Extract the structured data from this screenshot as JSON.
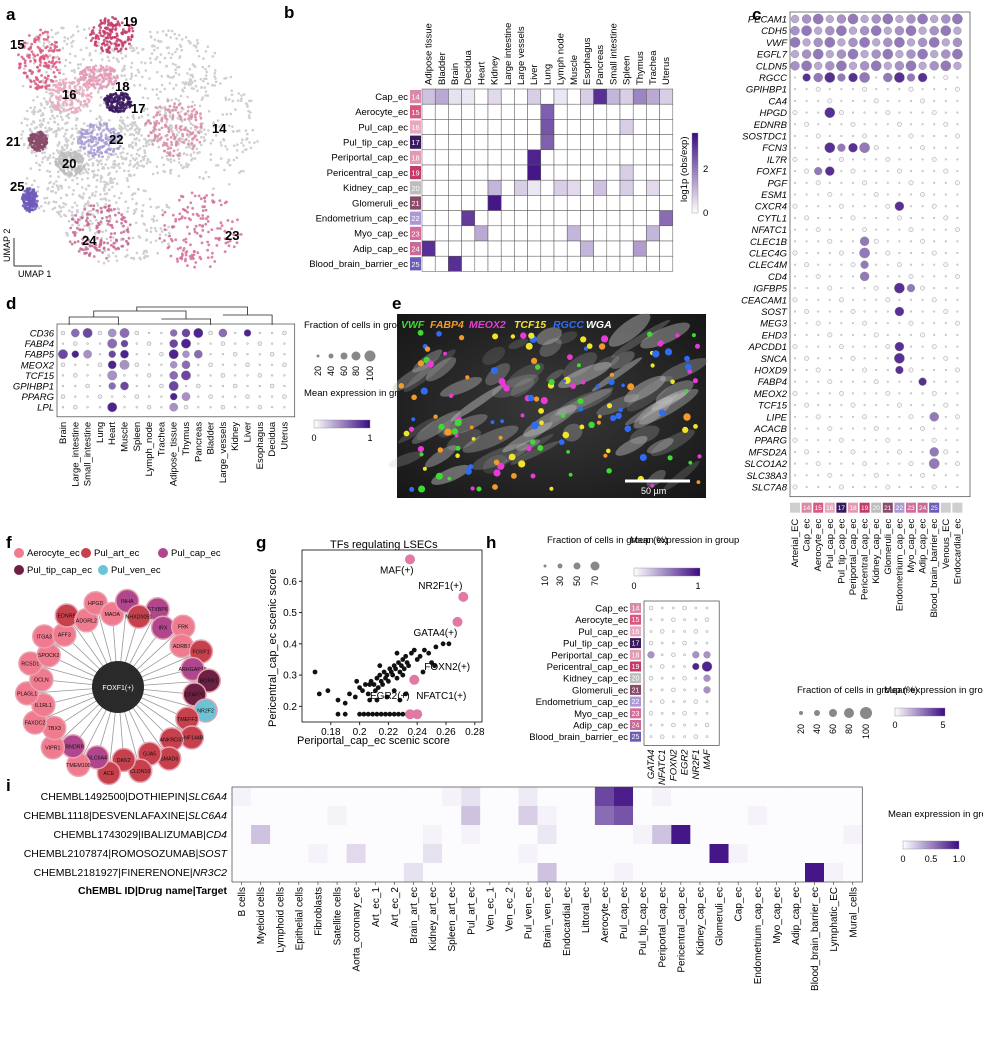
{
  "panel_labels": {
    "a": "a",
    "b": "b",
    "c": "c",
    "d": "d",
    "e": "e",
    "f": "f",
    "g": "g",
    "h": "h",
    "i": "i"
  },
  "colors": {
    "accent": "#4b1d8f",
    "pink": "#e07aa5",
    "grid": "#555555",
    "umap_grey": "#c8c8c8"
  },
  "panel_a": {
    "axis_x": "UMAP 1",
    "axis_y": "UMAP 2",
    "clusters": [
      {
        "label": "19",
        "color": "#c43a6a"
      },
      {
        "label": "15",
        "color": "#d9587f"
      },
      {
        "label": "18",
        "color": "#e39ab5"
      },
      {
        "label": "16",
        "color": "#e7a9c0"
      },
      {
        "label": "17",
        "color": "#3a1a5e"
      },
      {
        "label": "21",
        "color": "#8a4a6a"
      },
      {
        "label": "22",
        "color": "#a99ad6"
      },
      {
        "label": "14",
        "color": "#d98aa8"
      },
      {
        "label": "20",
        "color": "#bdbdbd"
      },
      {
        "label": "25",
        "color": "#6e5ab8"
      },
      {
        "label": "24",
        "color": "#c86a95"
      },
      {
        "label": "23",
        "color": "#d46d9c"
      }
    ]
  },
  "panel_b": {
    "colorbar_title": "log1p (obs/exp)",
    "colorbar_ticks": [
      "2",
      "0"
    ],
    "columns": [
      "Adipose tissue",
      "Bladder",
      "Brain",
      "Decidua",
      "Heart",
      "Kidney",
      "Large intestine",
      "Large vessels",
      "Liver",
      "Lung",
      "Lymph node",
      "Muscle",
      "Esophagus",
      "Pancreas",
      "Small intestine",
      "Spleen",
      "Thymus",
      "Trachea",
      "Uterus"
    ],
    "rows": [
      {
        "name": "Cap_ec",
        "id": "14",
        "color": "#d98aa8"
      },
      {
        "name": "Aerocyte_ec",
        "id": "15",
        "color": "#d9587f"
      },
      {
        "name": "Pul_cap_ec",
        "id": "16",
        "color": "#e7a9c0"
      },
      {
        "name": "Pul_tip_cap_ec",
        "id": "17",
        "color": "#3a1a5e"
      },
      {
        "name": "Periportal_cap_ec",
        "id": "18",
        "color": "#e39ab5"
      },
      {
        "name": "Pericentral_cap_ec",
        "id": "19",
        "color": "#c43a6a"
      },
      {
        "name": "Kidney_cap_ec",
        "id": "20",
        "color": "#bdbdbd"
      },
      {
        "name": "Glomeruli_ec",
        "id": "21",
        "color": "#8a4a6a"
      },
      {
        "name": "Endometrium_cap_ec",
        "id": "22",
        "color": "#a99ad6"
      },
      {
        "name": "Myo_cap_ec",
        "id": "23",
        "color": "#d46d9c"
      },
      {
        "name": "Adip_cap_ec",
        "id": "24",
        "color": "#c86a95"
      },
      {
        "name": "Blood_brain_barrier_ec",
        "id": "25",
        "color": "#6e5ab8"
      }
    ]
  },
  "panel_c": {
    "genes": [
      "PECAM1",
      "CDH5",
      "VWF",
      "EGFL7",
      "CLDN5",
      "RGCC",
      "GPIHBP1",
      "CA4",
      "HPGD",
      "EDNRB",
      "SOSTDC1",
      "FCN3",
      "IL7R",
      "FOXF1",
      "PGF",
      "ESM1",
      "CXCR4",
      "CYTL1",
      "NFATC1",
      "CLEC1B",
      "CLEC4G",
      "CLEC4M",
      "CD4",
      "IGFBP5",
      "CEACAM1",
      "SOST",
      "MEG3",
      "EHD3",
      "APCDD1",
      "SNCA",
      "HOXD9",
      "FABP4",
      "MEOX2",
      "TCF15",
      "LIPE",
      "ACACB",
      "PPARG",
      "MFSD2A",
      "SLCO1A2",
      "SLC38A3",
      "SLC7A8"
    ],
    "groups": [
      {
        "name": "Arterial_EC",
        "id": "",
        "color": "#cfcfcf"
      },
      {
        "name": "Cap_ec",
        "id": "14",
        "color": "#d98aa8"
      },
      {
        "name": "Aerocyte_ec",
        "id": "15",
        "color": "#d9587f"
      },
      {
        "name": "Pul_cap_ec",
        "id": "16",
        "color": "#e7a9c0"
      },
      {
        "name": "Pul_tip_cap_ec",
        "id": "17",
        "color": "#3a1a5e"
      },
      {
        "name": "Periportal_cap_ec",
        "id": "18",
        "color": "#e39ab5"
      },
      {
        "name": "Pericentral_cap_ec",
        "id": "19",
        "color": "#c43a6a"
      },
      {
        "name": "Kidney_cap_ec",
        "id": "20",
        "color": "#bdbdbd"
      },
      {
        "name": "Glomeruli_ec",
        "id": "21",
        "color": "#8a4a6a"
      },
      {
        "name": "Endometrium_cap_ec",
        "id": "22",
        "color": "#a99ad6"
      },
      {
        "name": "Myo_cap_ec",
        "id": "23",
        "color": "#d46d9c"
      },
      {
        "name": "Adip_cap_ec",
        "id": "24",
        "color": "#c86a95"
      },
      {
        "name": "Blood_brain_barrier_ec",
        "id": "25",
        "color": "#6e5ab8"
      },
      {
        "name": "Venous_EC",
        "id": "",
        "color": "#cfcfcf"
      },
      {
        "name": "Endocardial_ec",
        "id": "",
        "color": "#cfcfcf"
      }
    ],
    "legend_size_title": "Fraction of cells in group (%)",
    "legend_size_ticks": [
      "20",
      "40",
      "60",
      "80",
      "100"
    ],
    "legend_color_title": "Mean expression in group",
    "legend_color_ticks": [
      "0",
      "5"
    ]
  },
  "panel_d": {
    "genes": [
      "CD36",
      "FABP4",
      "FABP5",
      "MEOX2",
      "TCF15",
      "GPIHBP1",
      "PPARG",
      "LPL"
    ],
    "tissues": [
      "Brain",
      "Large_intestine",
      "Small_intestine",
      "Lung",
      "Heart",
      "Muscle",
      "Spleen",
      "Lymph_node",
      "Trachea",
      "Adipose_tissue",
      "Thymus",
      "Pancreas",
      "Bladder",
      "Large_vessels",
      "Kidney",
      "Liver",
      "Esophagus",
      "Decidua",
      "Uterus"
    ],
    "legend_size_title": "Fraction of cells in group (%)",
    "legend_size_ticks": [
      "20",
      "40",
      "60",
      "80",
      "100"
    ],
    "legend_color_title": "Mean expression in group",
    "legend_color_ticks": [
      "0",
      "1"
    ]
  },
  "panel_e": {
    "labels": [
      {
        "text": "VWF",
        "color": "#3ddc2f"
      },
      {
        "text": "FABP4",
        "color": "#f39a2a"
      },
      {
        "text": "MEOX2",
        "color": "#e83bd6"
      },
      {
        "text": "TCF15",
        "color": "#f1e52b"
      },
      {
        "text": "RGCC",
        "color": "#2f6cf5"
      },
      {
        "text": "WGA",
        "color": "#ffffff"
      }
    ],
    "scale_bar": "50 µm"
  },
  "panel_f": {
    "legend": [
      {
        "label": "Aerocyte_ec",
        "color": "#f07a8e"
      },
      {
        "label": "Pul_art_ec",
        "color": "#c7414d"
      },
      {
        "label": "Pul_cap_ec",
        "color": "#b0468e"
      },
      {
        "label": "Pul_tip_cap_ec",
        "color": "#6e2044"
      },
      {
        "label": "Pul_ven_ec",
        "color": "#6cc3d5"
      }
    ],
    "center": "FOXF1(+)",
    "nodes": [
      {
        "label": "STXBP6",
        "color": "#b0468e"
      },
      {
        "label": "IRX",
        "color": "#b0468e"
      },
      {
        "label": "FRK",
        "color": "#f07a8e"
      },
      {
        "label": "ADRB1",
        "color": "#f07a8e"
      },
      {
        "label": "FOXF1",
        "color": "#c7414d"
      },
      {
        "label": "ARHGAP18",
        "color": "#b0468e"
      },
      {
        "label": "BORB1",
        "color": "#6e2044"
      },
      {
        "label": "CFAP70",
        "color": "#6e2044"
      },
      {
        "label": "NR2F2",
        "color": "#6cc3d5"
      },
      {
        "label": "TMEFF2",
        "color": "#c7414d"
      },
      {
        "label": "RNF144B",
        "color": "#c7414d"
      },
      {
        "label": "ANKRD37",
        "color": "#c7414d"
      },
      {
        "label": "SMAD6",
        "color": "#c7414d"
      },
      {
        "label": "GJA5",
        "color": "#c7414d"
      },
      {
        "label": "CLDN10",
        "color": "#c7414d"
      },
      {
        "label": "DKK2",
        "color": "#c7414d"
      },
      {
        "label": "ACE",
        "color": "#c7414d"
      },
      {
        "label": "SLC6A4",
        "color": "#b0468e"
      },
      {
        "label": "TMEM100",
        "color": "#f07a8e"
      },
      {
        "label": "PRNDRR",
        "color": "#b0468e"
      },
      {
        "label": "VIPR1",
        "color": "#f07a8e"
      },
      {
        "label": "TBX3",
        "color": "#f07a8e"
      },
      {
        "label": "FAXDC2",
        "color": "#f07a8e"
      },
      {
        "label": "IL1RL1",
        "color": "#f07a8e"
      },
      {
        "label": "PLAGL1",
        "color": "#f07a8e"
      },
      {
        "label": "OCLN",
        "color": "#f07a8e"
      },
      {
        "label": "RCSD1",
        "color": "#f07a8e"
      },
      {
        "label": "SPOCK2",
        "color": "#f07a8e"
      },
      {
        "label": "ITGA3",
        "color": "#f07a8e"
      },
      {
        "label": "AFF3",
        "color": "#f07a8e"
      },
      {
        "label": "EDNRB",
        "color": "#c7414d"
      },
      {
        "label": "ADGRL2",
        "color": "#f07a8e"
      },
      {
        "label": "HPGD",
        "color": "#f07a8e"
      },
      {
        "label": "MAOA",
        "color": "#f07a8e"
      },
      {
        "label": "INHA",
        "color": "#b0468e"
      },
      {
        "label": "NHXD0051",
        "color": "#c7414d"
      }
    ]
  },
  "panel_g": {
    "title": "TFs regulating LSECs",
    "xlabel": "Periportal_cap_ec scenic score",
    "ylabel": "Pericentral_cap_ec scenic score"
  },
  "chart_data": [
    {
      "type": "scatter",
      "title": "TFs regulating LSECs",
      "xlabel": "Periportal_cap_ec scenic score",
      "ylabel": "Pericentral_cap_ec scenic score",
      "xlim": [
        0.16,
        0.285
      ],
      "ylim": [
        0.15,
        0.7
      ],
      "xticks": [
        0.18,
        0.2,
        0.22,
        0.24,
        0.26,
        0.28
      ],
      "yticks": [
        0.2,
        0.3,
        0.4,
        0.5,
        0.6
      ],
      "highlighted": [
        {
          "label": "MAF(+)",
          "x": 0.235,
          "y": 0.67
        },
        {
          "label": "NR2F1(+)",
          "x": 0.272,
          "y": 0.55
        },
        {
          "label": "GATA4(+)",
          "x": 0.268,
          "y": 0.47
        },
        {
          "label": "FOXN2(+)",
          "x": 0.238,
          "y": 0.285
        },
        {
          "label": "EGR2(+)",
          "x": 0.235,
          "y": 0.175
        },
        {
          "label": "NFATC1(+)",
          "x": 0.24,
          "y": 0.175
        }
      ],
      "points": [
        [
          0.169,
          0.31
        ],
        [
          0.172,
          0.24
        ],
        [
          0.178,
          0.25
        ],
        [
          0.185,
          0.22
        ],
        [
          0.19,
          0.21
        ],
        [
          0.193,
          0.24
        ],
        [
          0.197,
          0.23
        ],
        [
          0.2,
          0.26
        ],
        [
          0.202,
          0.25
        ],
        [
          0.204,
          0.27
        ],
        [
          0.206,
          0.24
        ],
        [
          0.207,
          0.22
        ],
        [
          0.208,
          0.28
        ],
        [
          0.21,
          0.27
        ],
        [
          0.211,
          0.25
        ],
        [
          0.212,
          0.29
        ],
        [
          0.213,
          0.26
        ],
        [
          0.214,
          0.3
        ],
        [
          0.215,
          0.28
        ],
        [
          0.216,
          0.27
        ],
        [
          0.217,
          0.31
        ],
        [
          0.218,
          0.29
        ],
        [
          0.219,
          0.3
        ],
        [
          0.22,
          0.28
        ],
        [
          0.221,
          0.32
        ],
        [
          0.222,
          0.31
        ],
        [
          0.223,
          0.3
        ],
        [
          0.224,
          0.33
        ],
        [
          0.225,
          0.32
        ],
        [
          0.226,
          0.29
        ],
        [
          0.227,
          0.34
        ],
        [
          0.228,
          0.31
        ],
        [
          0.229,
          0.33
        ],
        [
          0.23,
          0.35
        ],
        [
          0.231,
          0.32
        ],
        [
          0.232,
          0.36
        ],
        [
          0.233,
          0.34
        ],
        [
          0.234,
          0.33
        ],
        [
          0.236,
          0.37
        ],
        [
          0.238,
          0.38
        ],
        [
          0.24,
          0.35
        ],
        [
          0.242,
          0.36
        ],
        [
          0.245,
          0.38
        ],
        [
          0.248,
          0.37
        ],
        [
          0.25,
          0.34
        ],
        [
          0.253,
          0.39
        ],
        [
          0.258,
          0.4
        ],
        [
          0.262,
          0.4
        ],
        [
          0.228,
          0.22
        ],
        [
          0.232,
          0.24
        ],
        [
          0.219,
          0.23
        ],
        [
          0.224,
          0.25
        ],
        [
          0.212,
          0.22
        ],
        [
          0.207,
          0.27
        ],
        [
          0.198,
          0.28
        ],
        [
          0.214,
          0.33
        ],
        [
          0.226,
          0.37
        ],
        [
          0.23,
          0.3
        ],
        [
          0.244,
          0.31
        ],
        [
          0.252,
          0.33
        ],
        [
          0.2,
          0.175
        ],
        [
          0.203,
          0.175
        ],
        [
          0.206,
          0.175
        ],
        [
          0.209,
          0.175
        ],
        [
          0.212,
          0.175
        ],
        [
          0.215,
          0.175
        ],
        [
          0.218,
          0.175
        ],
        [
          0.221,
          0.175
        ],
        [
          0.224,
          0.175
        ],
        [
          0.227,
          0.175
        ],
        [
          0.23,
          0.175
        ],
        [
          0.233,
          0.175
        ],
        [
          0.185,
          0.175
        ],
        [
          0.19,
          0.175
        ]
      ]
    }
  ],
  "panel_h": {
    "legend_size_title": "Fraction of cells in group (%)",
    "legend_size_ticks": [
      "10",
      "30",
      "50",
      "70"
    ],
    "legend_color_title": "Mean expression in group",
    "legend_color_ticks": [
      "0",
      "1"
    ],
    "genes": [
      "GATA4",
      "NFATC1",
      "FOXN2",
      "EGR2",
      "NR2F1",
      "MAF"
    ]
  },
  "panel_i": {
    "rows": [
      {
        "prefix": "CHEMBL1492500|DOTHIEPIN|",
        "target": "SLC6A4"
      },
      {
        "prefix": "CHEMBL1118|DESVENLAFAXINE|",
        "target": "SLC6A4"
      },
      {
        "prefix": "CHEMBL1743029|IBALIZUMAB|",
        "target": "CD4"
      },
      {
        "prefix": "CHEMBL2107874|ROMOSOZUMAB|",
        "target": "SOST"
      },
      {
        "prefix": "CHEMBL2181927|FINERENONE|",
        "target": "NR3C2"
      }
    ],
    "row_title": "ChEMBL ID|Drug name|Target",
    "columns": [
      "B cells",
      "Myeloid cells",
      "Lymphoid cells",
      "Epithelial cells",
      "Fibroblasts",
      "Satellite cells",
      "Aorta_coronary_ec",
      "Art_ec_1",
      "Art_ec_2",
      "Brain_art_ec",
      "Kidney_art_ec",
      "Spleen_art_ec",
      "Pul_art_ec",
      "Ven_ec_1",
      "Ven_ec_2",
      "Pul_ven_ec",
      "Brain_ven_ec",
      "Endocardial_ec",
      "Littoral_ec",
      "Aerocyte_ec",
      "Pul_cap_ec",
      "Pul_tip_cap_ec",
      "Periportal_cap_ec",
      "Pericentral_cap_ec",
      "Kidney_cap_ec",
      "Glomeruli_ec",
      "Cap_ec",
      "Endometrium_cap_ec",
      "Myo_cap_ec",
      "Adip_cap_ec",
      "Blood_brain_barrier_ec",
      "Lymphatic_EC",
      "Mural_cells"
    ],
    "legend_title": "Mean expression in group",
    "legend_ticks": [
      "0",
      "0.5",
      "1.0"
    ]
  }
}
